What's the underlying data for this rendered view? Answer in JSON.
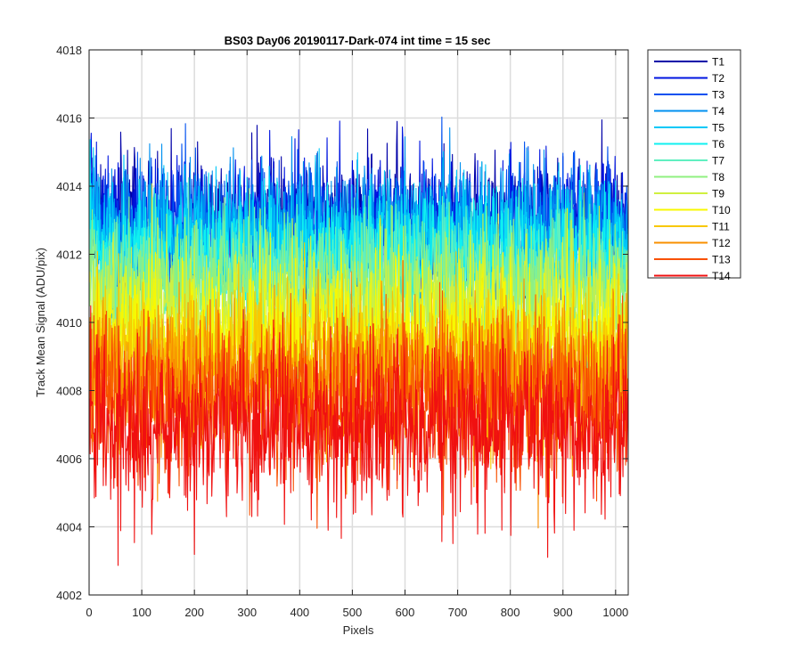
{
  "chart_data": {
    "type": "line",
    "title": "BS03 Day06 20190117-Dark-074 int time = 15 sec",
    "xlabel": "Pixels",
    "ylabel": "Track Mean Signal (ADU/pix)",
    "xlim": [
      0,
      1024
    ],
    "ylim": [
      4002,
      4018
    ],
    "xticks": [
      0,
      100,
      200,
      300,
      400,
      500,
      600,
      700,
      800,
      900,
      1000
    ],
    "yticks": [
      4002,
      4004,
      4006,
      4008,
      4010,
      4012,
      4014,
      4016,
      4018
    ],
    "grid": true,
    "legend_position": "outside-top-right",
    "series": [
      {
        "name": "T1",
        "color": "#0000A8",
        "mean": 4012.9,
        "spread": 0.95
      },
      {
        "name": "T2",
        "color": "#0014E0",
        "mean": 4012.9,
        "spread": 0.95
      },
      {
        "name": "T3",
        "color": "#0050F0",
        "mean": 4012.7,
        "spread": 0.95
      },
      {
        "name": "T4",
        "color": "#0090F0",
        "mean": 4012.6,
        "spread": 0.95
      },
      {
        "name": "T5",
        "color": "#00C8F8",
        "mean": 4012.4,
        "spread": 0.95
      },
      {
        "name": "T6",
        "color": "#10F0F0",
        "mean": 4011.9,
        "spread": 0.95
      },
      {
        "name": "T7",
        "color": "#60F0C0",
        "mean": 4011.4,
        "spread": 1.0
      },
      {
        "name": "T8",
        "color": "#90F080",
        "mean": 4010.9,
        "spread": 1.0
      },
      {
        "name": "T9",
        "color": "#D0F040",
        "mean": 4010.2,
        "spread": 1.05
      },
      {
        "name": "T10",
        "color": "#F8F800",
        "mean": 4009.6,
        "spread": 1.05
      },
      {
        "name": "T11",
        "color": "#F8C800",
        "mean": 4008.9,
        "spread": 1.1
      },
      {
        "name": "T12",
        "color": "#F89000",
        "mean": 4008.3,
        "spread": 1.15
      },
      {
        "name": "T13",
        "color": "#F85000",
        "mean": 4007.7,
        "spread": 1.2
      },
      {
        "name": "T14",
        "color": "#F01010",
        "mean": 4007.0,
        "spread": 1.25
      }
    ]
  }
}
